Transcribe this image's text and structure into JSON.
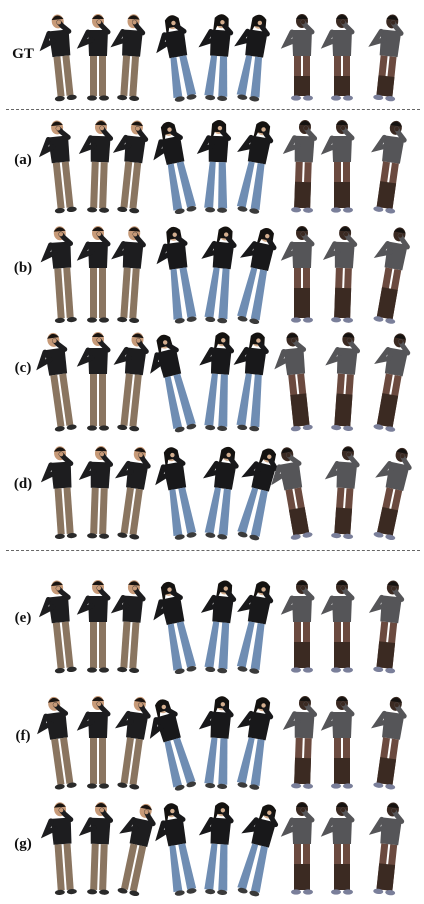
{
  "rows": [
    {
      "label": "GT"
    },
    {
      "label": "(a)"
    },
    {
      "label": "(b)"
    },
    {
      "label": "(c)"
    },
    {
      "label": "(d)"
    },
    {
      "label": "(e)"
    },
    {
      "label": "(f)"
    },
    {
      "label": "(g)"
    }
  ],
  "subjects": [
    {
      "name": "man-black-shirt-khaki-pants",
      "skin": "#c79a78",
      "top": "#1d1d1f",
      "bottom": "#8a7560",
      "hair": "#1a1410",
      "shoes": "#2a2a2a"
    },
    {
      "name": "woman-black-top-flared-jeans",
      "skin": "#d4ae8e",
      "top": "#18181a",
      "bottom": "#6f8db3",
      "hair": "#141210",
      "shoes": "#3a3a3a"
    },
    {
      "name": "man-grey-shirt-camo-shorts",
      "skin": "#3b2a22",
      "top": "#555558",
      "bottom": "#6b4a3f",
      "hair": "#151210",
      "shoes": "#7a7f9a"
    }
  ]
}
